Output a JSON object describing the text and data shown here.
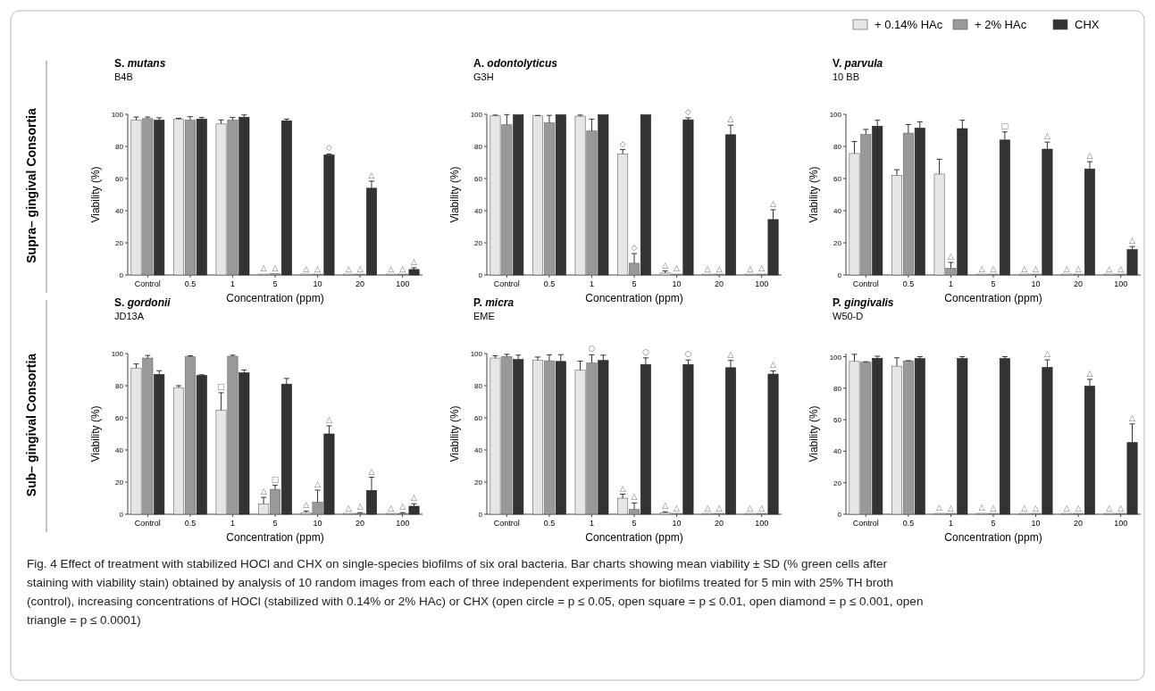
{
  "chart_data": [
    {
      "type": "bar",
      "title": "S. mutans",
      "subtitle": "B4B",
      "xlabel": "Concentration (ppm)",
      "ylabel": "Viability (%)",
      "categories": [
        "Control",
        "0.5",
        "1",
        "5",
        "10",
        "20",
        "100"
      ],
      "ylim": [
        0,
        100
      ],
      "yticks": [
        0,
        20,
        40,
        60,
        80,
        100
      ],
      "legend": "top right",
      "annotations": [
        "Supra– gingival Consortia"
      ],
      "series": [
        {
          "name": "+ 0.14% HAc",
          "color": "#e6e6e6",
          "values": [
            96.5,
            96.8,
            94,
            0.3,
            0,
            0,
            0
          ],
          "errors": [
            [
              96.5,
              98.3
            ],
            [
              96.8,
              97.5
            ],
            [
              94,
              96.5
            ],
            null,
            null,
            null,
            null
          ],
          "value_labels": [
            null,
            null,
            null,
            "△",
            "△",
            "△",
            "△"
          ]
        },
        {
          "name": "+ 2% HAc",
          "color": "#999999",
          "values": [
            97.3,
            96.3,
            96.3,
            0.8,
            0,
            0,
            0
          ],
          "errors": [
            [
              97.3,
              98.3
            ],
            [
              96.3,
              98.5
            ],
            [
              96.3,
              98
            ],
            null,
            null,
            null,
            null
          ],
          "value_labels": [
            null,
            null,
            null,
            "△",
            "△",
            "△",
            "△"
          ]
        },
        {
          "name": "CHX",
          "color": "#333333",
          "values": [
            96.3,
            97,
            98.2,
            96,
            74.7,
            54,
            3.4
          ],
          "errors": [
            [
              96.3,
              97.8
            ],
            [
              97,
              98
            ],
            [
              98.2,
              99.6
            ],
            [
              96,
              97
            ],
            [
              74.7,
              75.3
            ],
            [
              54,
              58.4
            ],
            [
              3.4,
              4.5
            ]
          ],
          "value_labels": [
            null,
            null,
            null,
            null,
            "◇",
            "△",
            "△"
          ]
        }
      ]
    },
    {
      "type": "bar",
      "title": "A. odontolyticus",
      "subtitle": "G3H",
      "xlabel": "Concentration (ppm)",
      "ylabel": "Viability (%)",
      "categories": [
        "Control",
        "0.5",
        "1",
        "5",
        "10",
        "20",
        "100"
      ],
      "ylim": [
        0,
        100
      ],
      "yticks": [
        0,
        20,
        40,
        60,
        80,
        100
      ],
      "series": [
        {
          "color": "#e6e6e6",
          "values": [
            99,
            99,
            98.8,
            75.4,
            1.2,
            0,
            0
          ],
          "errors": [
            [
              99,
              99.5
            ],
            [
              99,
              99.3
            ],
            [
              98.8,
              99.5
            ],
            [
              75.4,
              78
            ],
            [
              1.2,
              2.5
            ],
            null,
            null
          ],
          "value_labels": [
            null,
            null,
            null,
            "◇",
            "△",
            "△",
            "△"
          ]
        },
        {
          "color": "#999999",
          "values": [
            93.5,
            94.7,
            89.6,
            7.3,
            0.3,
            0,
            0.3
          ],
          "errors": [
            [
              93.5,
              99.8
            ],
            [
              94.7,
              99.3
            ],
            [
              89.6,
              97
            ],
            [
              7.3,
              13.3
            ],
            null,
            null,
            null
          ],
          "value_labels": [
            null,
            null,
            null,
            "◇",
            "△",
            "△",
            "△"
          ]
        },
        {
          "color": "#333333",
          "values": [
            99.7,
            99.7,
            99.7,
            99.7,
            96.6,
            87.3,
            34.5
          ],
          "errors": [
            null,
            null,
            null,
            null,
            [
              96.6,
              97.8
            ],
            [
              87.3,
              93.2
            ],
            [
              34.5,
              40.6
            ]
          ],
          "value_labels": [
            null,
            null,
            null,
            null,
            "◇",
            "△",
            "△"
          ]
        }
      ]
    },
    {
      "type": "bar",
      "title": "V. parvula",
      "subtitle": "10 BB",
      "xlabel": "Concentration (ppm)",
      "ylabel": "Viability (%)",
      "categories": [
        "Control",
        "0.5",
        "1",
        "5",
        "10",
        "20",
        "100"
      ],
      "ylim": [
        0,
        100
      ],
      "yticks": [
        0,
        20,
        40,
        60,
        80,
        100
      ],
      "series": [
        {
          "color": "#e6e6e6",
          "values": [
            75.6,
            62,
            62.8,
            0,
            0,
            0,
            0
          ],
          "errors": [
            [
              75.6,
              83
            ],
            [
              62,
              65.5
            ],
            [
              62.8,
              72
            ],
            null,
            null,
            null,
            null
          ],
          "value_labels": [
            null,
            null,
            null,
            "△",
            "△",
            "△",
            "△"
          ]
        },
        {
          "color": "#999999",
          "values": [
            87.4,
            88.3,
            4.2,
            0,
            0,
            0,
            0
          ],
          "errors": [
            [
              87.4,
              90.6
            ],
            [
              88.3,
              93.6
            ],
            [
              4.2,
              7.8
            ],
            null,
            null,
            null,
            null
          ],
          "value_labels": [
            null,
            null,
            "△",
            "△",
            "△",
            "△",
            "△"
          ]
        },
        {
          "color": "#333333",
          "values": [
            92.6,
            91.4,
            91.1,
            84,
            78.3,
            66,
            15.8
          ],
          "errors": [
            [
              92.6,
              96.3
            ],
            [
              91.4,
              95.3
            ],
            [
              91.1,
              96.3
            ],
            [
              84,
              89
            ],
            [
              78.3,
              82.7
            ],
            [
              66,
              70.5
            ],
            [
              15.8,
              17.7
            ]
          ],
          "value_labels": [
            null,
            null,
            null,
            "□",
            "△",
            "△",
            "△"
          ]
        }
      ]
    },
    {
      "type": "bar",
      "title": "S. gordonii",
      "subtitle": "JD13A",
      "xlabel": "Concentration (ppm)",
      "ylabel": "Viability (%)",
      "categories": [
        "Control",
        "0.5",
        "1",
        "5",
        "10",
        "20",
        "100"
      ],
      "ylim": [
        0,
        100
      ],
      "yticks": [
        0,
        20,
        40,
        60,
        80,
        100
      ],
      "annotations": [
        "Sub– gingival Consortia"
      ],
      "series": [
        {
          "color": "#e6e6e6",
          "values": [
            91,
            78.8,
            64.7,
            6.5,
            1,
            0,
            0
          ],
          "errors": [
            [
              91,
              93.5
            ],
            [
              78.8,
              80
            ],
            [
              64.7,
              75.6
            ],
            [
              6.5,
              10.5
            ],
            [
              1,
              2
            ],
            null,
            null
          ],
          "value_labels": [
            null,
            null,
            "□",
            "△",
            "△",
            "△",
            "△"
          ]
        },
        {
          "color": "#999999",
          "values": [
            97.2,
            98,
            98.3,
            15.5,
            7.5,
            0.5,
            0.5
          ],
          "errors": [
            [
              97.2,
              98.8
            ],
            [
              98,
              98.6
            ],
            [
              98.3,
              99
            ],
            [
              15.5,
              18
            ],
            [
              7.5,
              15
            ],
            [
              0.5,
              1
            ],
            [
              0.5,
              1
            ]
          ],
          "value_labels": [
            null,
            null,
            null,
            "□",
            "△",
            "△",
            "△"
          ]
        },
        {
          "color": "#333333",
          "values": [
            87,
            86.4,
            88,
            81,
            50,
            14.8,
            5
          ],
          "errors": [
            [
              87,
              89.3
            ],
            [
              86.4,
              86.8
            ],
            [
              88,
              89.8
            ],
            [
              81,
              84.5
            ],
            [
              50,
              55
            ],
            [
              14.8,
              23
            ],
            [
              5,
              6.5
            ]
          ],
          "value_labels": [
            null,
            null,
            null,
            null,
            "△",
            "△",
            "△"
          ]
        }
      ]
    },
    {
      "type": "bar",
      "title": "P. micra",
      "subtitle": "EME",
      "xlabel": "Concentration (ppm)",
      "ylabel": "Viability (%)",
      "categories": [
        "Control",
        "0.5",
        "1",
        "5",
        "10",
        "20",
        "100"
      ],
      "ylim": [
        0,
        100
      ],
      "yticks": [
        0,
        20,
        40,
        60,
        80,
        100
      ],
      "series": [
        {
          "color": "#e6e6e6",
          "values": [
            97.2,
            95.8,
            89.6,
            10,
            1,
            0,
            0
          ],
          "errors": [
            [
              97.2,
              98.6
            ],
            [
              95.8,
              97.8
            ],
            [
              89.6,
              95.3
            ],
            [
              10,
              12.5
            ],
            [
              1,
              1.5
            ],
            null,
            null
          ],
          "value_labels": [
            null,
            null,
            null,
            "△",
            "△",
            "△",
            "△"
          ]
        },
        {
          "color": "#999999",
          "values": [
            98.2,
            95.5,
            94.1,
            3,
            0,
            0,
            0
          ],
          "errors": [
            [
              98.2,
              99.5
            ],
            [
              95.5,
              99.2
            ],
            [
              94.1,
              99.2
            ],
            [
              3,
              7
            ],
            null,
            null,
            null
          ],
          "value_labels": [
            null,
            null,
            "○",
            "△",
            "△",
            "△",
            "△"
          ]
        },
        {
          "color": "#333333",
          "values": [
            96.3,
            95.1,
            95.7,
            93.2,
            93.2,
            91.2,
            87.2
          ],
          "errors": [
            [
              96.3,
              99
            ],
            [
              95.1,
              99.3
            ],
            [
              95.7,
              99
            ],
            [
              93.2,
              97.3
            ],
            [
              93.2,
              96
            ],
            [
              91.2,
              95.7
            ],
            [
              87.2,
              89.2
            ]
          ],
          "value_labels": [
            null,
            null,
            null,
            "○",
            "○",
            "△",
            "△"
          ]
        }
      ]
    },
    {
      "type": "bar",
      "title": "P. gingivalis",
      "subtitle": "W50-D",
      "xlabel": "Concentration (ppm)",
      "ylabel": "Viability (%)",
      "categories": [
        "Control",
        "0.5",
        "1",
        "5",
        "10",
        "20",
        "100"
      ],
      "ylim": [
        0,
        102
      ],
      "yticks": [
        0,
        20,
        40,
        60,
        80,
        100
      ],
      "annotations": [
        "Fig. 4  Effect of treatment with stabilized HOCl and CHX on single-species biofilms of six oral bacteria. Bar charts showing mean viability ± SD (% green cells after staining with viability stain) obtained by analysis of 10 random images from each of three independent experiments for biofilms treated for 5 min with 25% TH broth (control), increasing concentrations of HOCl (stabilized with 0.14% or 2% HAc) or CHX (open circle = p ≤ 0.05, open square = p ≤ 0.01, open diamond = p ≤ 0.001, open triangle = p ≤ 0.0001)"
      ],
      "series": [
        {
          "color": "#e6e6e6",
          "values": [
            97,
            94,
            0.3,
            0.3,
            0,
            0,
            0
          ],
          "errors": [
            [
              97,
              101.5
            ],
            [
              94,
              99.3
            ],
            null,
            null,
            null,
            null,
            null
          ],
          "value_labels": [
            null,
            null,
            "△",
            "△",
            "△",
            "△",
            "△"
          ]
        },
        {
          "color": "#999999",
          "values": [
            96.5,
            97.3,
            0,
            0,
            0,
            0,
            0
          ],
          "errors": [
            [
              96.5,
              96.8
            ],
            [
              97.3,
              97.5
            ],
            null,
            null,
            null,
            null,
            null
          ],
          "value_labels": [
            null,
            null,
            "△",
            "△",
            "△",
            "△",
            "△"
          ]
        },
        {
          "color": "#333333",
          "values": [
            99,
            98.8,
            98.8,
            98.8,
            93.2,
            81.3,
            45.5
          ],
          "errors": [
            [
              99,
              100.3
            ],
            [
              98.8,
              100
            ],
            [
              98.8,
              100
            ],
            [
              98.8,
              100
            ],
            [
              93.2,
              98
            ],
            [
              81.3,
              85.6
            ],
            [
              45.5,
              57.3
            ]
          ],
          "value_labels": [
            null,
            null,
            null,
            null,
            "△",
            "△",
            "△"
          ]
        }
      ]
    }
  ]
}
